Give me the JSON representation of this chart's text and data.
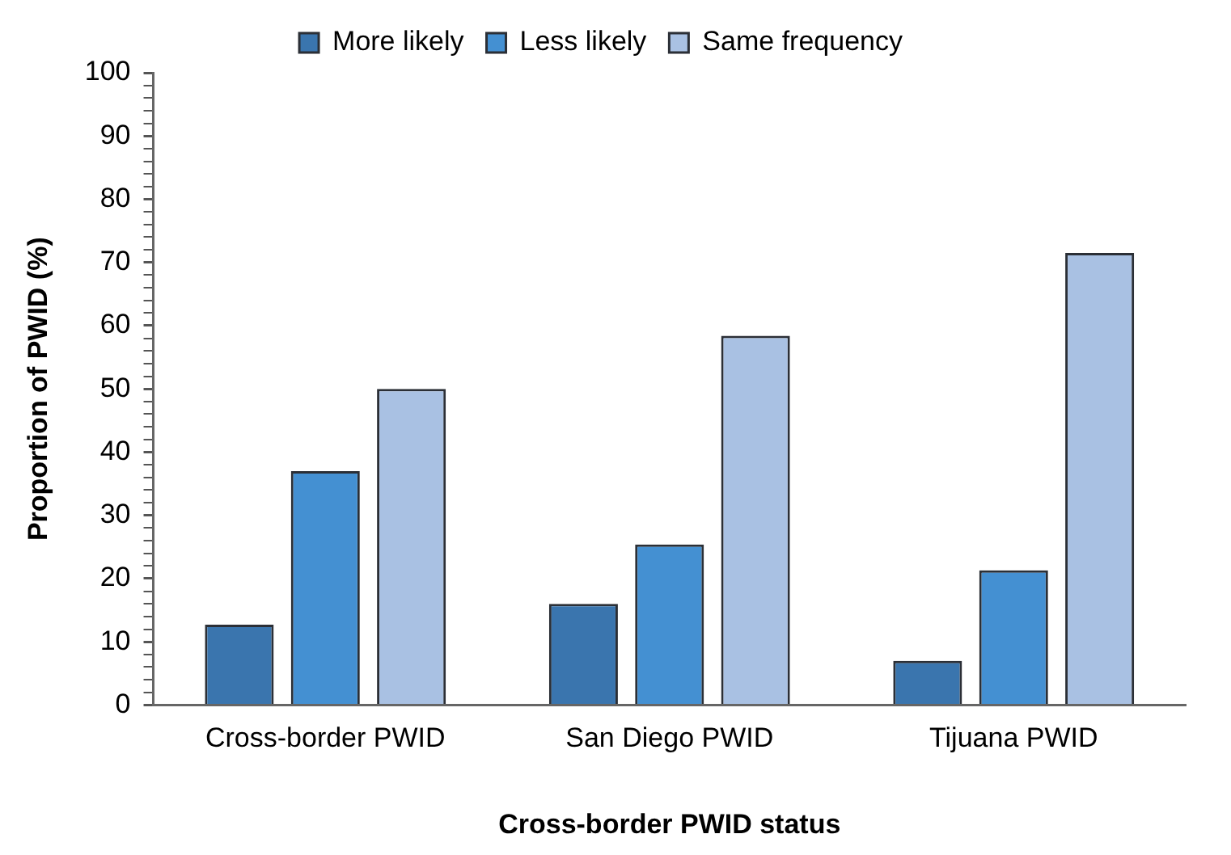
{
  "chart_data": {
    "type": "bar",
    "xlabel": "Cross-border PWID status",
    "ylabel": "Proportion of PWID (%)",
    "categories": [
      "Cross-border PWID",
      "San Diego PWID",
      "Tijuana PWID"
    ],
    "series": [
      {
        "name": "More likely",
        "color": "#3a75ae",
        "values": [
          12.7,
          16.0,
          7.0
        ]
      },
      {
        "name": "Less likely",
        "color": "#4490d2",
        "values": [
          37.0,
          25.4,
          21.3
        ]
      },
      {
        "name": "Same frequency",
        "color": "#a9c1e3",
        "values": [
          50.0,
          58.4,
          71.5
        ]
      }
    ],
    "ylim": [
      0,
      100
    ],
    "yticks": [
      0,
      {
        "value": 2,
        "label": null
      },
      {
        "value": 4,
        "label": null
      },
      {
        "value": 6,
        "label": null
      },
      {
        "value": 8,
        "label": null
      },
      10,
      {
        "value": 12,
        "label": null
      },
      {
        "value": 14,
        "label": null
      },
      {
        "value": 16,
        "label": null
      },
      {
        "value": 18,
        "label": null
      },
      20,
      {
        "value": 22,
        "label": null
      },
      {
        "value": 24,
        "label": null
      },
      {
        "value": 26,
        "label": null
      },
      {
        "value": 28,
        "label": null
      },
      30,
      {
        "value": 32,
        "label": null
      },
      {
        "value": 34,
        "label": null
      },
      {
        "value": 36,
        "label": null
      },
      {
        "value": 38,
        "label": null
      },
      40,
      {
        "value": 42,
        "label": null
      },
      {
        "value": 44,
        "label": null
      },
      {
        "value": 46,
        "label": null
      },
      {
        "value": 48,
        "label": null
      },
      50,
      {
        "value": 52,
        "label": null
      },
      {
        "value": 54,
        "label": null
      },
      {
        "value": 56,
        "label": null
      },
      {
        "value": 58,
        "label": null
      },
      60,
      {
        "value": 62,
        "label": null
      },
      {
        "value": 64,
        "label": null
      },
      {
        "value": 66,
        "label": null
      },
      {
        "value": 68,
        "label": null
      },
      70,
      {
        "value": 72,
        "label": null
      },
      {
        "value": 74,
        "label": null
      },
      {
        "value": 76,
        "label": null
      },
      {
        "value": 78,
        "label": null
      },
      80,
      {
        "value": 82,
        "label": null
      },
      {
        "value": 84,
        "label": null
      },
      {
        "value": 86,
        "label": null
      },
      {
        "value": 88,
        "label": null
      },
      90,
      {
        "value": 92,
        "label": null
      },
      {
        "value": 94,
        "label": null
      },
      {
        "value": 96,
        "label": null
      },
      {
        "value": 98,
        "label": null
      },
      100
    ],
    "grid": false,
    "legend": "top"
  }
}
